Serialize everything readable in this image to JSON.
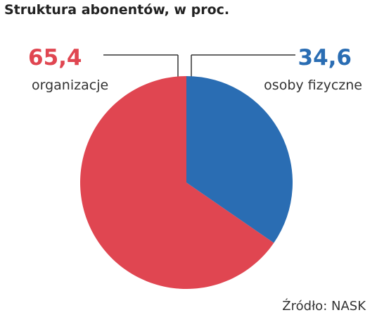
{
  "chart_data": {
    "type": "pie",
    "title": "Struktura abonentów, w proc.",
    "categories": [
      "organizacje",
      "osoby fizyczne"
    ],
    "values": [
      65.4,
      34.6
    ],
    "value_labels": [
      "65,4",
      "34,6"
    ],
    "colors": [
      "#e04651",
      "#2a6db3"
    ],
    "source": "Źródło: NASK"
  }
}
